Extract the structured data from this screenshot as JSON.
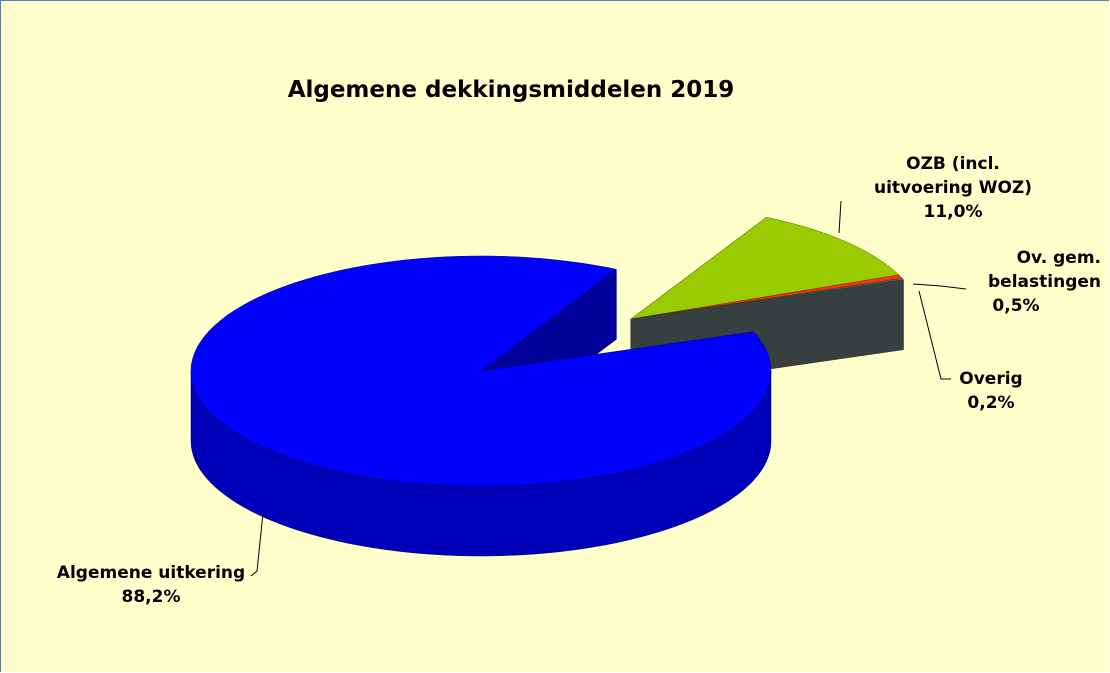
{
  "chart_data": {
    "type": "pie3d",
    "title": "Algemene dekkingsmiddelen 2019",
    "categories": [
      "Algemene uitkering",
      "OZB (incl. uitvoering WOZ)",
      "Ov. gem. belastingen",
      "Overig"
    ],
    "values": [
      88.2,
      11.0,
      0.5,
      0.2
    ],
    "value_labels": [
      "88,2%",
      "11,0%",
      "0,5%",
      "0,2%"
    ],
    "colors": [
      "#0000ff",
      "#99cc00",
      "#ff3300",
      "#5a6b6b"
    ]
  }
}
